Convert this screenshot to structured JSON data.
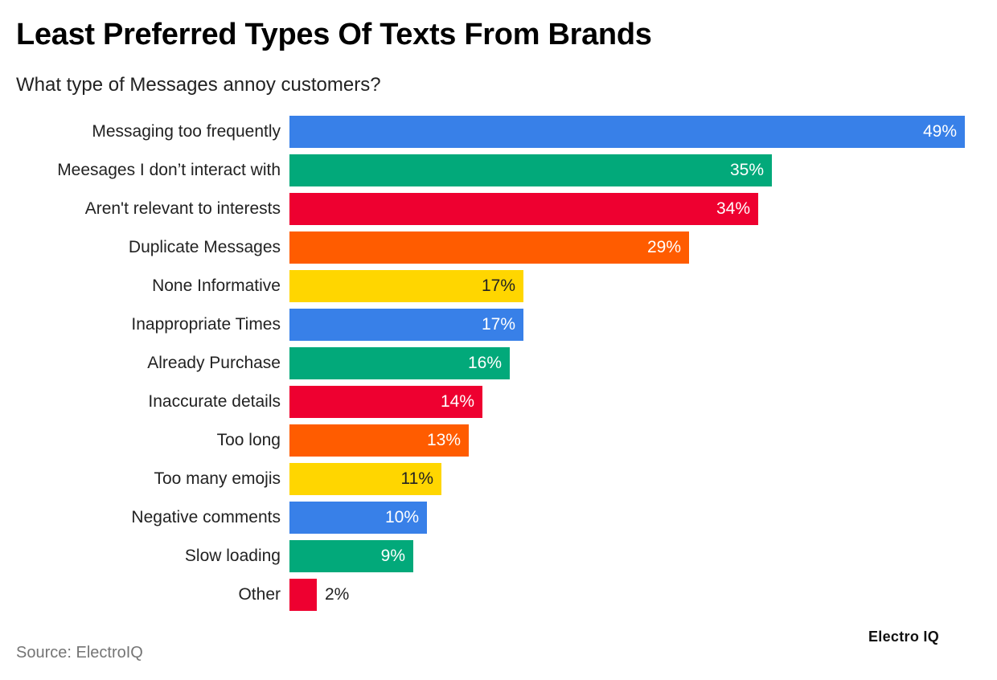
{
  "header": {
    "title": "Least Preferred Types Of Texts From Brands",
    "subtitle": "What type of Messages annoy customers?"
  },
  "footer": {
    "source": "Source: ElectroIQ",
    "brand": "Electro IQ"
  },
  "colors": {
    "blue": "#3880E8",
    "green": "#02A97A",
    "red": "#EE0030",
    "orange": "#FF5C00",
    "yellow": "#FFD600"
  },
  "chart_data": {
    "type": "bar",
    "orientation": "horizontal",
    "title": "Least Preferred Types Of Texts From Brands",
    "subtitle": "What type of Messages annoy customers?",
    "xlabel": "",
    "ylabel": "",
    "xlim": [
      0,
      49
    ],
    "grid": false,
    "legend": "none",
    "value_suffix": "%",
    "categories": [
      "Messaging too frequently",
      "Meesages I don’t interact with",
      "Aren't relevant to interests",
      "Duplicate Messages",
      "None Informative",
      "Inappropriate Times",
      "Already Purchase",
      "Inaccurate details",
      "Too long",
      "Too many emojis",
      "Negative comments",
      "Slow loading",
      "Other"
    ],
    "values": [
      49,
      35,
      34,
      29,
      17,
      17,
      16,
      14,
      13,
      11,
      10,
      9,
      2
    ],
    "bar_colors": [
      "#3880E8",
      "#02A97A",
      "#EE0030",
      "#FF5C00",
      "#FFD600",
      "#3880E8",
      "#02A97A",
      "#EE0030",
      "#FF5C00",
      "#FFD600",
      "#3880E8",
      "#02A97A",
      "#EE0030"
    ],
    "source": "Source: ElectroIQ"
  },
  "bars": [
    {
      "label": "Messaging too frequently",
      "value": 49,
      "text": "49%",
      "color": "#3880E8"
    },
    {
      "label": "Meesages I don’t interact with",
      "value": 35,
      "text": "35%",
      "color": "#02A97A"
    },
    {
      "label": "Aren't relevant to interests",
      "value": 34,
      "text": "34%",
      "color": "#EE0030"
    },
    {
      "label": "Duplicate Messages",
      "value": 29,
      "text": "29%",
      "color": "#FF5C00"
    },
    {
      "label": "None Informative",
      "value": 17,
      "text": "17%",
      "color": "#FFD600"
    },
    {
      "label": "Inappropriate Times",
      "value": 17,
      "text": "17%",
      "color": "#3880E8"
    },
    {
      "label": "Already Purchase",
      "value": 16,
      "text": "16%",
      "color": "#02A97A"
    },
    {
      "label": "Inaccurate details",
      "value": 14,
      "text": "14%",
      "color": "#EE0030"
    },
    {
      "label": "Too long",
      "value": 13,
      "text": "13%",
      "color": "#FF5C00"
    },
    {
      "label": "Too many emojis",
      "value": 11,
      "text": "11%",
      "color": "#FFD600"
    },
    {
      "label": "Negative comments",
      "value": 10,
      "text": "10%",
      "color": "#3880E8"
    },
    {
      "label": "Slow loading",
      "value": 9,
      "text": "9%",
      "color": "#02A97A"
    },
    {
      "label": "Other",
      "value": 2,
      "text": "2%",
      "color": "#EE0030"
    }
  ]
}
